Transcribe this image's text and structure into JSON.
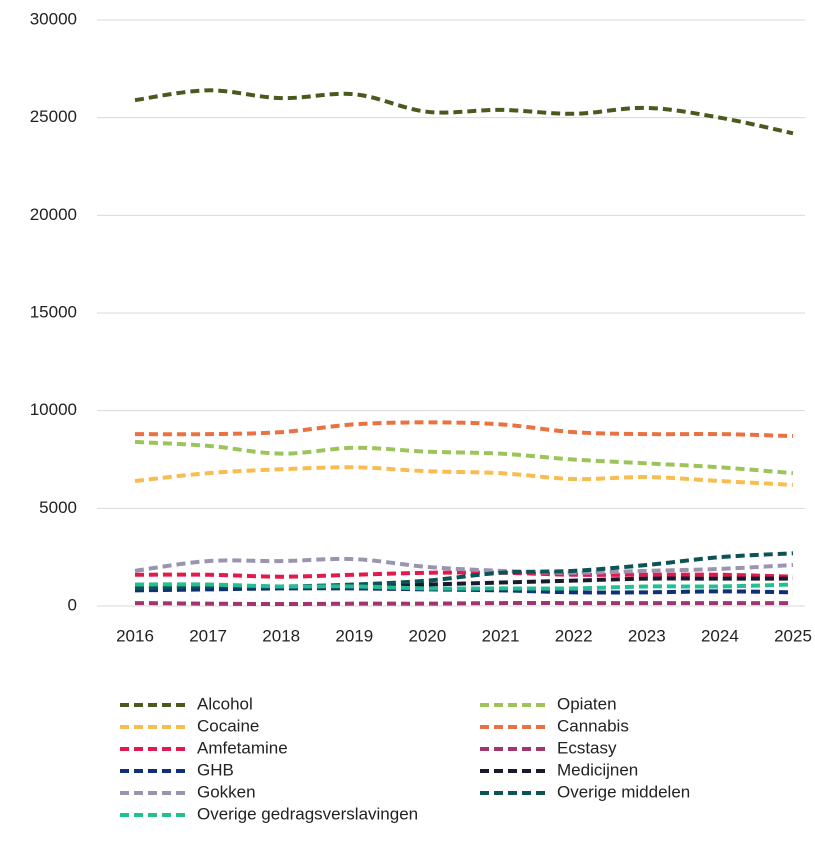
{
  "chart_data": {
    "type": "line",
    "x": [
      "2016",
      "2017",
      "2018",
      "2019",
      "2020",
      "2021",
      "2022",
      "2023",
      "2024",
      "2025"
    ],
    "ylim": [
      0,
      30000
    ],
    "yticks": [
      0,
      5000,
      10000,
      15000,
      20000,
      25000,
      30000
    ],
    "grid": true,
    "smooth": true,
    "legend": "bottom",
    "series": [
      {
        "name": "Alcohol",
        "color": "#4a5a1f",
        "values": [
          25900,
          26400,
          26000,
          26200,
          25300,
          25400,
          25200,
          25500,
          25000,
          24200
        ]
      },
      {
        "name": "Opiaten",
        "color": "#9dc45a",
        "values": [
          8400,
          8200,
          7800,
          8100,
          7900,
          7800,
          7500,
          7300,
          7100,
          6800
        ]
      },
      {
        "name": "Cocaine",
        "color": "#f8bd50",
        "values": [
          6400,
          6800,
          7000,
          7100,
          6900,
          6800,
          6500,
          6600,
          6400,
          6200
        ]
      },
      {
        "name": "Cannabis",
        "color": "#ea7240",
        "values": [
          8800,
          8800,
          8900,
          9300,
          9400,
          9300,
          8900,
          8800,
          8800,
          8700
        ]
      },
      {
        "name": "Amfetamine",
        "color": "#e0194e",
        "values": [
          1600,
          1600,
          1500,
          1600,
          1700,
          1700,
          1600,
          1600,
          1600,
          1500
        ]
      },
      {
        "name": "Ecstasy",
        "color": "#a03670",
        "values": [
          150,
          120,
          100,
          120,
          120,
          150,
          150,
          150,
          150,
          150
        ]
      },
      {
        "name": "GHB",
        "color": "#0f2f7a",
        "values": [
          800,
          850,
          900,
          900,
          850,
          800,
          700,
          700,
          750,
          700
        ]
      },
      {
        "name": "Medicijnen",
        "color": "#1a1a2e",
        "values": [
          900,
          1000,
          1000,
          1000,
          1100,
          1200,
          1300,
          1400,
          1400,
          1400
        ]
      },
      {
        "name": "Gokken",
        "color": "#9a94b0",
        "values": [
          1800,
          2300,
          2300,
          2400,
          2000,
          1800,
          1700,
          1800,
          1900,
          2100
        ]
      },
      {
        "name": "Overige middelen",
        "color": "#0c5356",
        "values": [
          900,
          1000,
          1000,
          1100,
          1300,
          1700,
          1800,
          2100,
          2500,
          2700
        ]
      },
      {
        "name": "Overige gedragsverslavingen",
        "color": "#20c090",
        "values": [
          1100,
          1100,
          1000,
          1000,
          900,
          900,
          900,
          1000,
          1000,
          1100
        ]
      }
    ]
  }
}
